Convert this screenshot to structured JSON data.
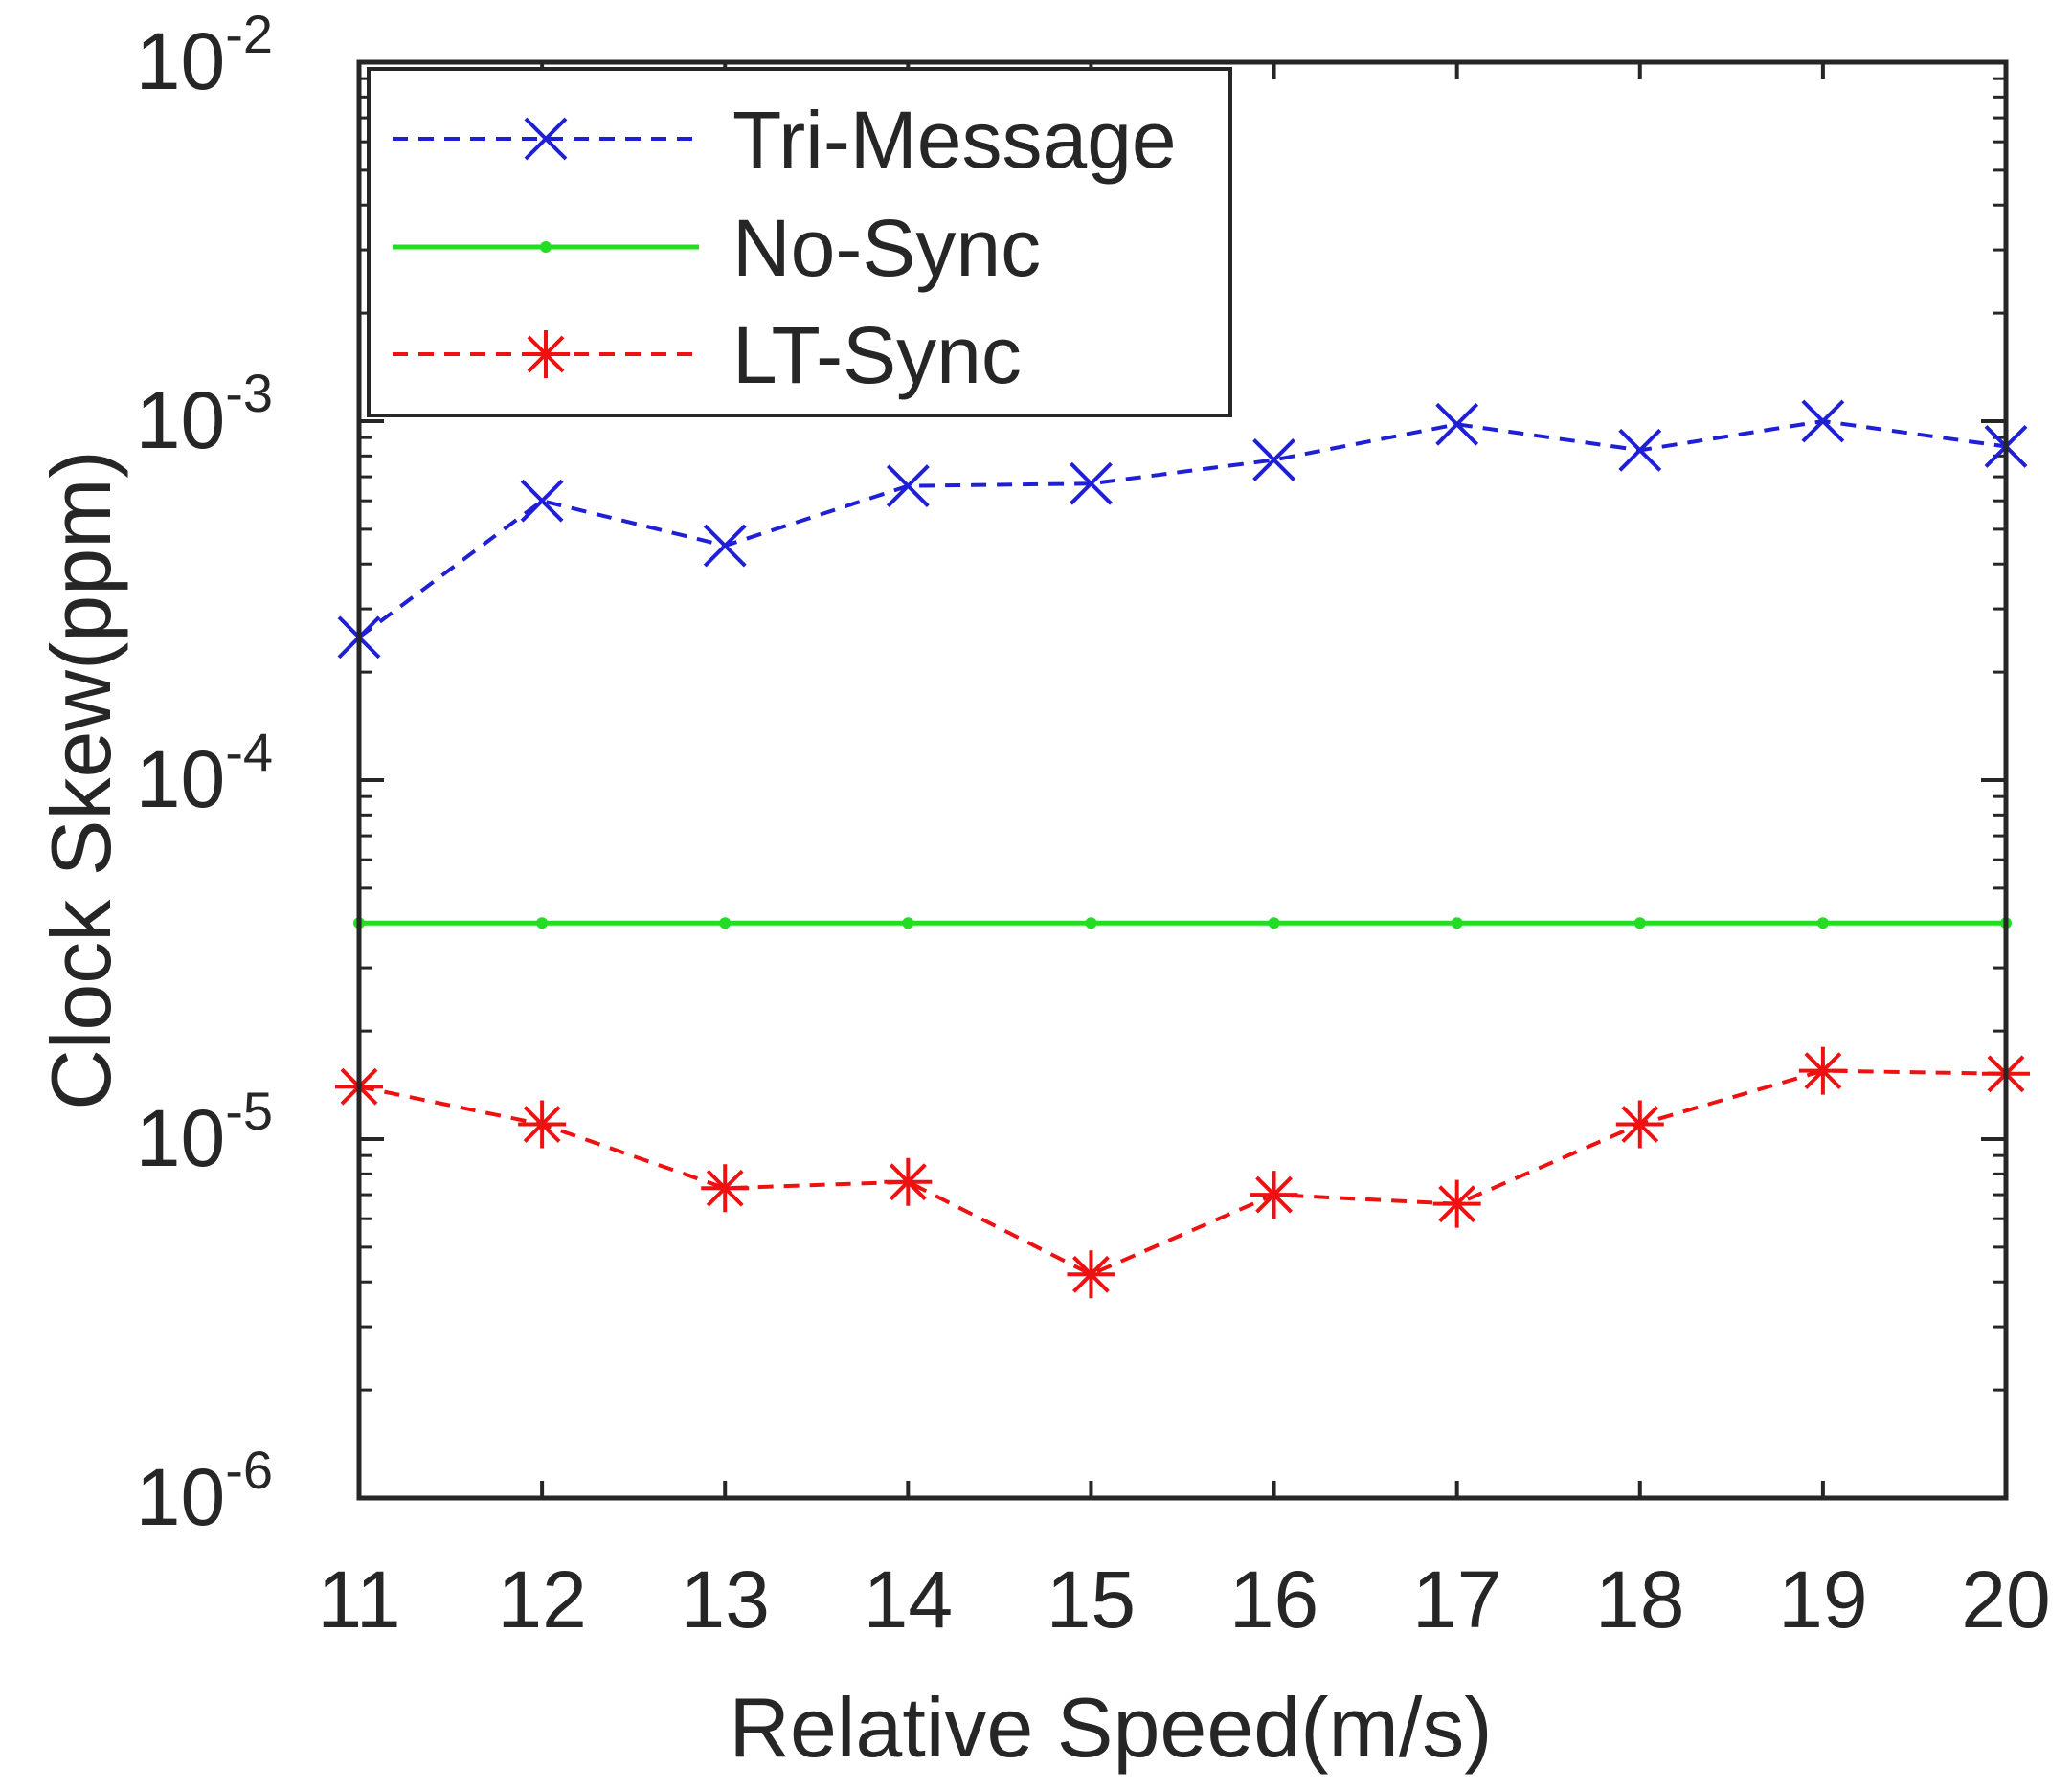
{
  "chart_data": {
    "type": "line",
    "title": "",
    "xlabel": "Relative Speed(m/s)",
    "ylabel": "Clock Skew(ppm)",
    "yscale": "log",
    "xlim": [
      11,
      20
    ],
    "ylim": [
      1e-06,
      0.01
    ],
    "x": [
      11,
      12,
      13,
      14,
      15,
      16,
      17,
      18,
      19,
      20
    ],
    "x_ticks": [
      "11",
      "12",
      "13",
      "14",
      "15",
      "16",
      "17",
      "18",
      "19",
      "20"
    ],
    "y_ticks": [
      {
        "value": 1e-06,
        "base": "10",
        "exp": "-6"
      },
      {
        "value": 1e-05,
        "base": "10",
        "exp": "-5"
      },
      {
        "value": 0.0001,
        "base": "10",
        "exp": "-4"
      },
      {
        "value": 0.001,
        "base": "10",
        "exp": "-3"
      },
      {
        "value": 0.01,
        "base": "10",
        "exp": "-2"
      }
    ],
    "legend_position": "top-left",
    "series": [
      {
        "name": "Tri-Message",
        "color": "#1f1fd6",
        "line": "dashed",
        "marker": "x",
        "values": [
          0.00025,
          0.0006,
          0.00045,
          0.00066,
          0.00067,
          0.00078,
          0.00098,
          0.00083,
          0.001,
          0.00085
        ]
      },
      {
        "name": "No-Sync",
        "color": "#22dd22",
        "line": "solid",
        "marker": "dot",
        "values": [
          4e-05,
          4e-05,
          4e-05,
          4e-05,
          4e-05,
          4e-05,
          4e-05,
          4e-05,
          4e-05,
          4e-05
        ]
      },
      {
        "name": "LT-Sync",
        "color": "#ee1111",
        "line": "dashed",
        "marker": "star",
        "values": [
          1.4e-05,
          1.1e-05,
          7.3e-06,
          7.6e-06,
          4.2e-06,
          7e-06,
          6.6e-06,
          1.1e-05,
          1.55e-05,
          1.52e-05
        ]
      }
    ]
  }
}
